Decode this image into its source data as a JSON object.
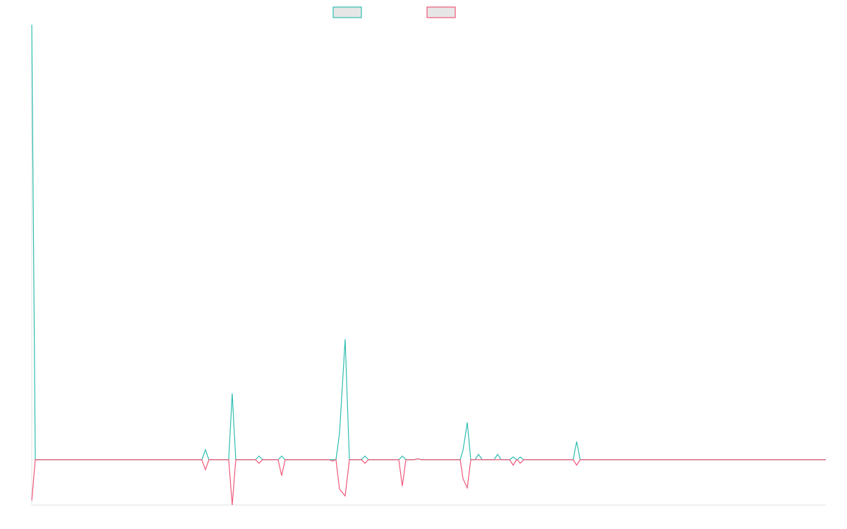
{
  "chart_data": {
    "type": "line",
    "title": "",
    "xlabel": "",
    "ylabel": "",
    "xlim": [
      0,
      1125
    ],
    "ylim": [
      -100,
      960
    ],
    "grid": false,
    "legend_position": "top-center",
    "series": [
      {
        "name": "",
        "color": "#2ebdb0",
        "points": [
          [
            0,
            960
          ],
          [
            5,
            0
          ],
          [
            241,
            0
          ],
          [
            246,
            22
          ],
          [
            251,
            0
          ],
          [
            279,
            0
          ],
          [
            284,
            146
          ],
          [
            289,
            0
          ],
          [
            317,
            0
          ],
          [
            322,
            8
          ],
          [
            327,
            0
          ],
          [
            349,
            0
          ],
          [
            354,
            8
          ],
          [
            359,
            0
          ],
          [
            421,
            0
          ],
          [
            426,
            0
          ],
          [
            431,
            0
          ],
          [
            436,
            58
          ],
          [
            444,
            266
          ],
          [
            450,
            0
          ],
          [
            467,
            0
          ],
          [
            472,
            8
          ],
          [
            477,
            0
          ],
          [
            520,
            0
          ],
          [
            525,
            8
          ],
          [
            530,
            0
          ],
          [
            542,
            0
          ],
          [
            547,
            2
          ],
          [
            552,
            0
          ],
          [
            607,
            0
          ],
          [
            611,
            21
          ],
          [
            617,
            82
          ],
          [
            622,
            0
          ],
          [
            628,
            0
          ],
          [
            633,
            12
          ],
          [
            638,
            0
          ],
          [
            655,
            0
          ],
          [
            660,
            12
          ],
          [
            665,
            0
          ],
          [
            677,
            0
          ],
          [
            682,
            6
          ],
          [
            687,
            0
          ],
          [
            688,
            0
          ],
          [
            692,
            6
          ],
          [
            697,
            0
          ],
          [
            767,
            0
          ],
          [
            772,
            40
          ],
          [
            777,
            0
          ],
          [
            1125,
            0
          ]
        ]
      },
      {
        "name": "",
        "color": "#f0577a",
        "points": [
          [
            0,
            -90
          ],
          [
            5,
            0
          ],
          [
            241,
            0
          ],
          [
            246,
            -22
          ],
          [
            251,
            0
          ],
          [
            279,
            0
          ],
          [
            284,
            -100
          ],
          [
            289,
            0
          ],
          [
            317,
            0
          ],
          [
            322,
            -8
          ],
          [
            327,
            0
          ],
          [
            349,
            0
          ],
          [
            354,
            -35
          ],
          [
            359,
            0
          ],
          [
            421,
            0
          ],
          [
            426,
            -3
          ],
          [
            431,
            0
          ],
          [
            436,
            -65
          ],
          [
            444,
            -80
          ],
          [
            450,
            0
          ],
          [
            467,
            0
          ],
          [
            472,
            -8
          ],
          [
            477,
            0
          ],
          [
            520,
            0
          ],
          [
            525,
            -58
          ],
          [
            530,
            0
          ],
          [
            542,
            0
          ],
          [
            547,
            2
          ],
          [
            552,
            0
          ],
          [
            607,
            0
          ],
          [
            611,
            -42
          ],
          [
            617,
            -62
          ],
          [
            622,
            0
          ],
          [
            628,
            0
          ],
          [
            633,
            0
          ],
          [
            638,
            0
          ],
          [
            655,
            0
          ],
          [
            660,
            0
          ],
          [
            665,
            0
          ],
          [
            677,
            0
          ],
          [
            682,
            -12
          ],
          [
            687,
            0
          ],
          [
            688,
            0
          ],
          [
            692,
            -8
          ],
          [
            697,
            0
          ],
          [
            767,
            0
          ],
          [
            772,
            -12
          ],
          [
            777,
            0
          ],
          [
            1125,
            0
          ]
        ]
      }
    ]
  }
}
